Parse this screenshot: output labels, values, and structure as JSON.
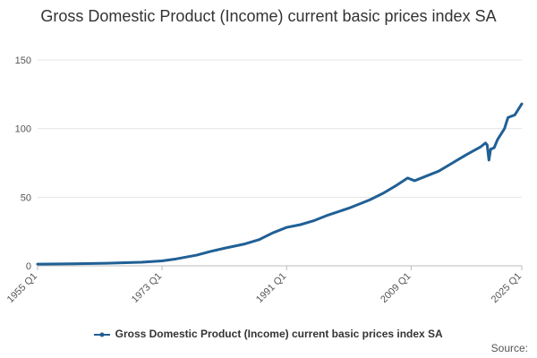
{
  "chart_data": {
    "type": "line",
    "title": "Gross Domestic Product (Income) current basic prices index SA",
    "xlabel": "",
    "ylabel": "",
    "x_range": [
      "1955 Q1",
      "2025 Q1"
    ],
    "x_ticks": [
      "1955 Q1",
      "1973 Q1",
      "1991 Q1",
      "2009 Q1",
      "2025 Q1"
    ],
    "y_ticks": [
      0,
      50,
      100,
      150
    ],
    "ylim": [
      0,
      150
    ],
    "grid": true,
    "legend_position": "bottom",
    "series": [
      {
        "name": "Gross Domestic Product (Income) current basic prices index SA",
        "color": "#206095",
        "points": [
          {
            "x": 1955.0,
            "y": 1.2
          },
          {
            "x": 1960.0,
            "y": 1.5
          },
          {
            "x": 1965.0,
            "y": 1.9
          },
          {
            "x": 1970.0,
            "y": 2.6
          },
          {
            "x": 1973.0,
            "y": 3.6
          },
          {
            "x": 1975.0,
            "y": 5.0
          },
          {
            "x": 1978.0,
            "y": 7.8
          },
          {
            "x": 1980.0,
            "y": 10.5
          },
          {
            "x": 1982.0,
            "y": 12.8
          },
          {
            "x": 1985.0,
            "y": 16.0
          },
          {
            "x": 1987.0,
            "y": 19.0
          },
          {
            "x": 1989.0,
            "y": 24.0
          },
          {
            "x": 1991.0,
            "y": 28.0
          },
          {
            "x": 1993.0,
            "y": 30.0
          },
          {
            "x": 1995.0,
            "y": 33.0
          },
          {
            "x": 1997.0,
            "y": 37.0
          },
          {
            "x": 2000.0,
            "y": 42.0
          },
          {
            "x": 2003.0,
            "y": 48.0
          },
          {
            "x": 2005.0,
            "y": 53.0
          },
          {
            "x": 2007.0,
            "y": 59.0
          },
          {
            "x": 2008.5,
            "y": 64.0
          },
          {
            "x": 2009.5,
            "y": 62.0
          },
          {
            "x": 2011.0,
            "y": 65.0
          },
          {
            "x": 2013.0,
            "y": 69.0
          },
          {
            "x": 2015.0,
            "y": 75.0
          },
          {
            "x": 2017.0,
            "y": 81.0
          },
          {
            "x": 2019.0,
            "y": 86.5
          },
          {
            "x": 2019.75,
            "y": 89.5
          },
          {
            "x": 2020.0,
            "y": 88.0
          },
          {
            "x": 2020.25,
            "y": 77.0
          },
          {
            "x": 2020.5,
            "y": 85.0
          },
          {
            "x": 2021.0,
            "y": 86.0
          },
          {
            "x": 2021.5,
            "y": 92.0
          },
          {
            "x": 2022.5,
            "y": 100.0
          },
          {
            "x": 2023.0,
            "y": 108.0
          },
          {
            "x": 2024.0,
            "y": 110.0
          },
          {
            "x": 2025.0,
            "y": 118.0
          }
        ]
      }
    ]
  },
  "source_label": "Source:"
}
